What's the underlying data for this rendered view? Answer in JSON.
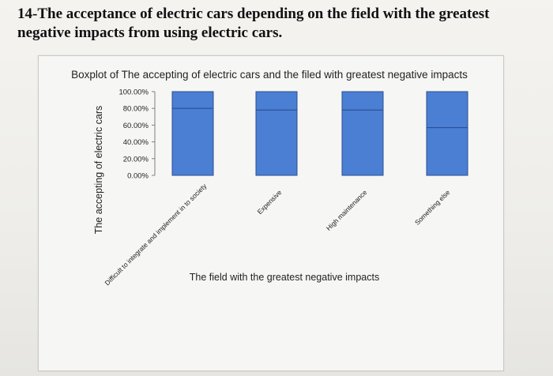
{
  "question": {
    "line1": "14-The acceptance of electric cars depending on the field with the greatest",
    "line2": "negative impacts from using electric cars."
  },
  "chart_data": {
    "type": "boxplot",
    "title": "Boxplot of The accepting  of electric cars and the filed with greatest negative impacts",
    "xlabel": "The field with the greatest negative impacts",
    "ylabel": "The accepting  of electric cars",
    "ylim": [
      0,
      100
    ],
    "yticks": [
      "0.00%",
      "20.00%",
      "40.00%",
      "60.00%",
      "80.00%",
      "100.00%"
    ],
    "ytick_values": [
      0,
      20,
      40,
      60,
      80,
      100
    ],
    "categories": [
      "Difficult to integrate and implement in to society",
      "Expensive",
      "High maintenance",
      "Something else"
    ],
    "boxes": [
      {
        "q1": 0,
        "median": 80,
        "q3": 100
      },
      {
        "q1": 0,
        "median": 78,
        "q3": 100
      },
      {
        "q1": 0,
        "median": 78,
        "q3": 100
      },
      {
        "q1": 0,
        "median": 57,
        "q3": 100
      }
    ],
    "colors": {
      "box_fill": "#4a7fd4",
      "box_stroke": "#2c4f8e",
      "axis": "#808080"
    }
  }
}
